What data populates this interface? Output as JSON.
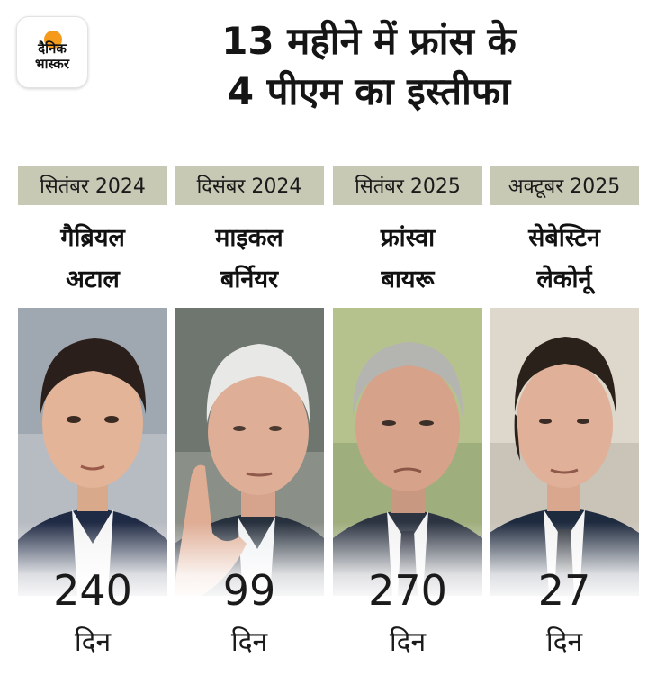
{
  "brand": {
    "line1": "दैनिक",
    "line2": "भास्कर",
    "sun_color": "#f59a1b"
  },
  "title": {
    "line1": "13 महीने में फ्रांस के",
    "line2": "4 पीएम का इस्तीफा"
  },
  "colors": {
    "date_bar": "#c7c9b4"
  },
  "people": [
    {
      "date": "सितंबर 2024",
      "name_line1": "गैब्रियल",
      "name_line2": "अटाल",
      "days": "240",
      "unit": "दिन"
    },
    {
      "date": "दिसंबर 2024",
      "name_line1": "माइकल",
      "name_line2": "बर्नियर",
      "days": "99",
      "unit": "दिन"
    },
    {
      "date": "सितंबर 2025",
      "name_line1": "फ्रांस्वा",
      "name_line2": "बायरू",
      "days": "270",
      "unit": "दिन"
    },
    {
      "date": "अक्टूबर 2025",
      "name_line1": "सेबेस्टिन",
      "name_line2": "लेकोर्नू",
      "days": "27",
      "unit": "दिन"
    }
  ]
}
